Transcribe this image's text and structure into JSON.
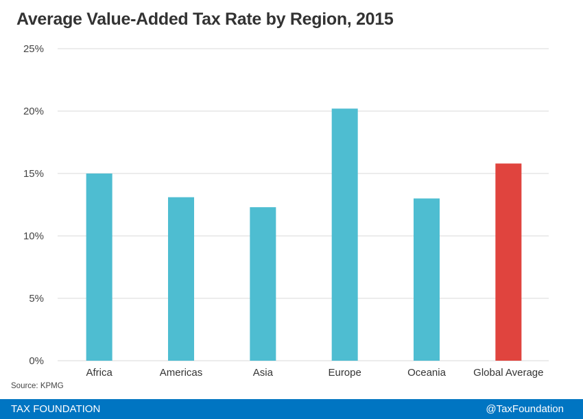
{
  "chart_data": {
    "type": "bar",
    "title": "Average Value-Added Tax Rate by Region, 2015",
    "xlabel": "",
    "ylabel": "",
    "categories": [
      "Africa",
      "Americas",
      "Asia",
      "Europe",
      "Oceania",
      "Global Average"
    ],
    "values": [
      15.0,
      13.1,
      12.3,
      20.2,
      13.0,
      15.8
    ],
    "colors": [
      "#4ebdd1",
      "#4ebdd1",
      "#4ebdd1",
      "#4ebdd1",
      "#4ebdd1",
      "#e0443e"
    ],
    "ylim": [
      0,
      25
    ],
    "yticks": [
      0,
      5,
      10,
      15,
      20,
      25
    ],
    "ytick_labels": [
      "0%",
      "5%",
      "10%",
      "15%",
      "20%",
      "25%"
    ],
    "grid": true,
    "legend": "none"
  },
  "source": "Source: KPMG",
  "footer": {
    "left": "TAX FOUNDATION",
    "right": "@TaxFoundation"
  }
}
